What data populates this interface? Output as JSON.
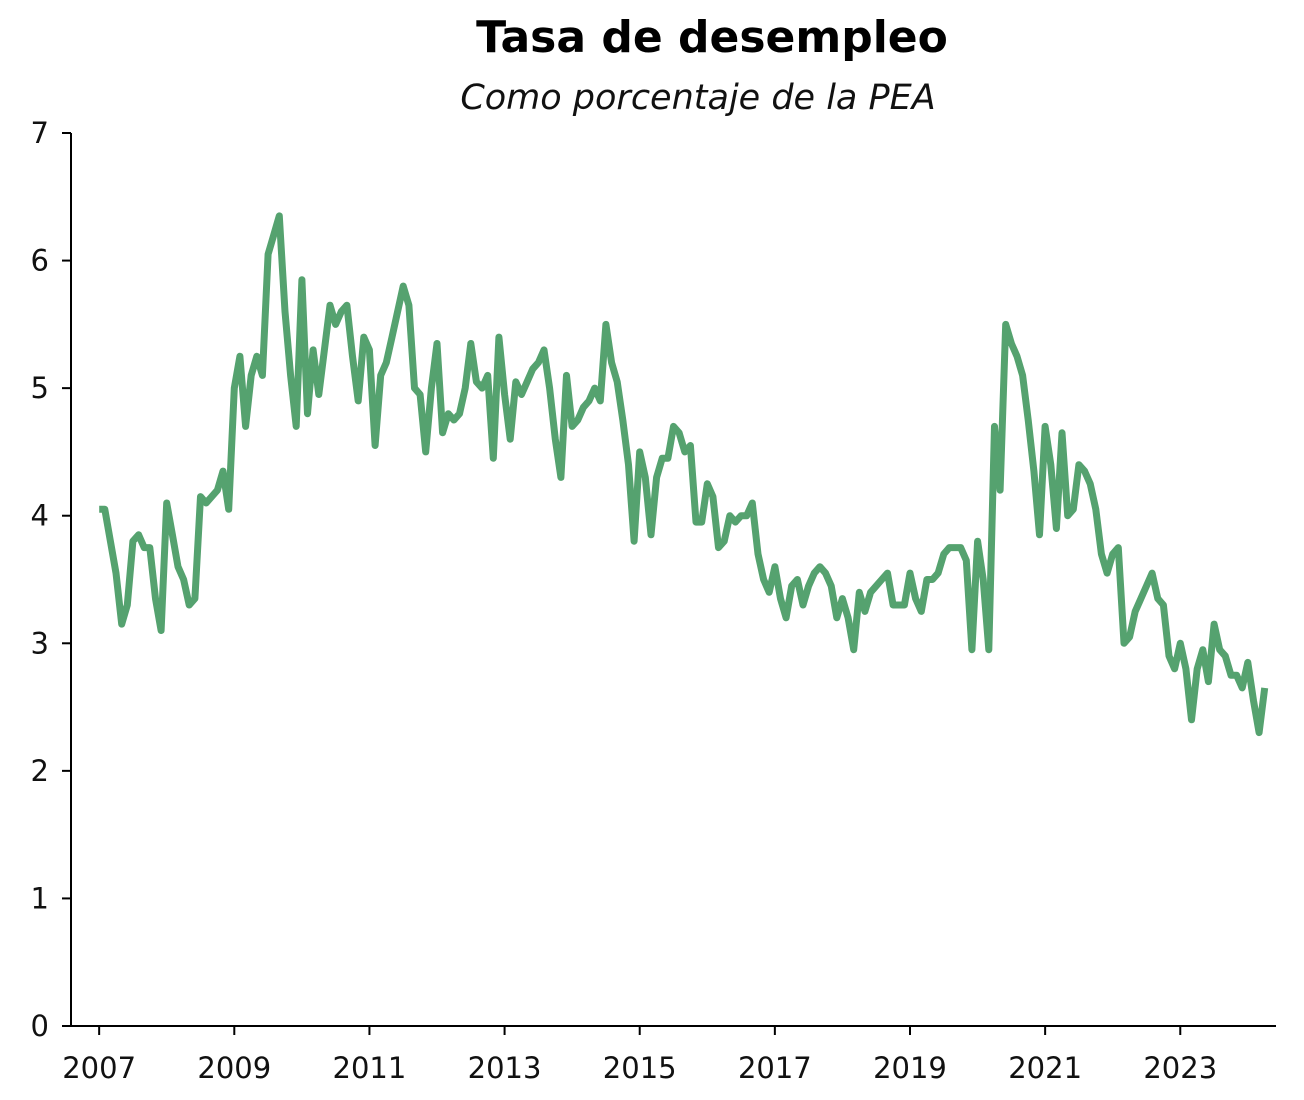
{
  "chart_data": {
    "type": "line",
    "title": "Tasa de desempleo",
    "subtitle": "Como porcentaje de la PEA",
    "xlabel": "",
    "ylabel": "",
    "x_ticks": [
      "2007",
      "2009",
      "2011",
      "2013",
      "2015",
      "2017",
      "2019",
      "2021",
      "2023"
    ],
    "y_ticks": [
      "0",
      "1",
      "2",
      "3",
      "4",
      "5",
      "6",
      "7"
    ],
    "ylim": [
      0,
      7
    ],
    "xlim": [
      "2006-08",
      "2024-06"
    ],
    "grid": false,
    "legend": "none",
    "colors": {
      "line": "#55a26f",
      "axis": "#000000"
    },
    "series": [
      {
        "x": [
          "2007-01",
          "2007-02",
          "2007-03",
          "2007-04",
          "2007-05",
          "2007-06",
          "2007-07",
          "2007-08",
          "2007-09",
          "2007-10",
          "2007-11",
          "2007-12",
          "2008-01",
          "2008-02",
          "2008-03",
          "2008-04",
          "2008-05",
          "2008-06",
          "2008-07",
          "2008-08",
          "2008-09",
          "2008-10",
          "2008-11",
          "2008-12",
          "2009-01",
          "2009-02",
          "2009-03",
          "2009-04",
          "2009-05",
          "2009-06",
          "2009-07",
          "2009-08",
          "2009-09",
          "2009-10",
          "2009-11",
          "2009-12",
          "2010-01",
          "2010-02",
          "2010-03",
          "2010-04",
          "2010-05",
          "2010-06",
          "2010-07",
          "2010-08",
          "2010-09",
          "2010-10",
          "2010-11",
          "2010-12",
          "2011-01",
          "2011-02",
          "2011-03",
          "2011-04",
          "2011-05",
          "2011-06",
          "2011-07",
          "2011-08",
          "2011-09",
          "2011-10",
          "2011-11",
          "2011-12",
          "2012-01",
          "2012-02",
          "2012-03",
          "2012-04",
          "2012-05",
          "2012-06",
          "2012-07",
          "2012-08",
          "2012-09",
          "2012-10",
          "2012-11",
          "2012-12",
          "2013-01",
          "2013-02",
          "2013-03",
          "2013-04",
          "2013-05",
          "2013-06",
          "2013-07",
          "2013-08",
          "2013-09",
          "2013-10",
          "2013-11",
          "2013-12",
          "2014-01",
          "2014-02",
          "2014-03",
          "2014-04",
          "2014-05",
          "2014-06",
          "2014-07",
          "2014-08",
          "2014-09",
          "2014-10",
          "2014-11",
          "2014-12",
          "2015-01",
          "2015-02",
          "2015-03",
          "2015-04",
          "2015-05",
          "2015-06",
          "2015-07",
          "2015-08",
          "2015-09",
          "2015-10",
          "2015-11",
          "2015-12",
          "2016-01",
          "2016-02",
          "2016-03",
          "2016-04",
          "2016-05",
          "2016-06",
          "2016-07",
          "2016-08",
          "2016-09",
          "2016-10",
          "2016-11",
          "2016-12",
          "2017-01",
          "2017-02",
          "2017-03",
          "2017-04",
          "2017-05",
          "2017-06",
          "2017-07",
          "2017-08",
          "2017-09",
          "2017-10",
          "2017-11",
          "2017-12",
          "2018-01",
          "2018-02",
          "2018-03",
          "2018-04",
          "2018-05",
          "2018-06",
          "2018-07",
          "2018-08",
          "2018-09",
          "2018-10",
          "2018-11",
          "2018-12",
          "2019-01",
          "2019-02",
          "2019-03",
          "2019-04",
          "2019-05",
          "2019-06",
          "2019-07",
          "2019-08",
          "2019-09",
          "2019-10",
          "2019-11",
          "2019-12",
          "2020-01",
          "2020-02",
          "2020-03",
          "2020-04",
          "2020-05",
          "2020-06",
          "2020-07",
          "2020-08",
          "2020-09",
          "2020-10",
          "2020-11",
          "2020-12",
          "2021-01",
          "2021-02",
          "2021-03",
          "2021-04",
          "2021-05",
          "2021-06",
          "2021-07",
          "2021-08",
          "2021-09",
          "2021-10",
          "2021-11",
          "2021-12",
          "2022-01",
          "2022-02",
          "2022-03",
          "2022-04",
          "2022-05",
          "2022-06",
          "2022-07",
          "2022-08",
          "2022-09",
          "2022-10",
          "2022-11",
          "2022-12",
          "2023-01",
          "2023-02",
          "2023-03",
          "2023-04",
          "2023-05",
          "2023-06",
          "2023-07",
          "2023-08",
          "2023-09",
          "2023-10",
          "2023-11",
          "2023-12",
          "2024-01",
          "2024-02",
          "2024-03",
          "2024-04"
        ],
        "values": [
          4.05,
          4.05,
          3.8,
          3.55,
          3.15,
          3.3,
          3.8,
          3.85,
          3.75,
          3.75,
          3.35,
          3.1,
          4.1,
          3.85,
          3.6,
          3.5,
          3.3,
          3.35,
          4.15,
          4.1,
          4.15,
          4.2,
          4.35,
          4.05,
          5.0,
          5.25,
          4.7,
          5.1,
          5.25,
          5.1,
          6.05,
          6.2,
          6.35,
          5.6,
          5.1,
          4.7,
          5.85,
          4.8,
          5.3,
          4.95,
          5.3,
          5.65,
          5.5,
          5.6,
          5.65,
          5.25,
          4.9,
          5.4,
          5.3,
          4.55,
          5.1,
          5.2,
          5.4,
          5.6,
          5.8,
          5.65,
          5.0,
          4.95,
          4.5,
          5.0,
          5.35,
          4.65,
          4.8,
          4.75,
          4.8,
          5.0,
          5.35,
          5.05,
          5.0,
          5.1,
          4.45,
          5.4,
          4.95,
          4.6,
          5.05,
          4.95,
          5.05,
          5.15,
          5.2,
          5.3,
          5.0,
          4.6,
          4.3,
          5.1,
          4.7,
          4.75,
          4.85,
          4.9,
          5.0,
          4.9,
          5.5,
          5.2,
          5.05,
          4.75,
          4.4,
          3.8,
          4.5,
          4.3,
          3.85,
          4.3,
          4.45,
          4.45,
          4.7,
          4.65,
          4.5,
          4.55,
          3.95,
          3.95,
          4.25,
          4.15,
          3.75,
          3.8,
          4.0,
          3.95,
          4.0,
          4.0,
          4.1,
          3.7,
          3.5,
          3.4,
          3.6,
          3.35,
          3.2,
          3.45,
          3.5,
          3.3,
          3.45,
          3.55,
          3.6,
          3.55,
          3.45,
          3.2,
          3.35,
          3.2,
          2.95,
          3.4,
          3.25,
          3.4,
          3.45,
          3.5,
          3.55,
          3.3,
          3.3,
          3.3,
          3.55,
          3.35,
          3.25,
          3.5,
          3.5,
          3.55,
          3.7,
          3.75,
          3.75,
          3.75,
          3.65,
          2.95,
          3.8,
          3.5,
          2.95,
          4.7,
          4.2,
          5.5,
          5.35,
          5.25,
          5.1,
          4.75,
          4.35,
          3.85,
          4.7,
          4.4,
          3.9,
          4.65,
          4.0,
          4.05,
          4.4,
          4.35,
          4.25,
          4.05,
          3.7,
          3.55,
          3.7,
          3.75,
          3.0,
          3.05,
          3.25,
          3.35,
          3.45,
          3.55,
          3.35,
          3.3,
          2.9,
          2.8,
          3.0,
          2.8,
          2.4,
          2.8,
          2.95,
          2.7,
          3.15,
          2.95,
          2.9,
          2.75,
          2.75,
          2.65,
          2.85,
          2.55,
          2.3,
          2.65
        ]
      }
    ]
  }
}
